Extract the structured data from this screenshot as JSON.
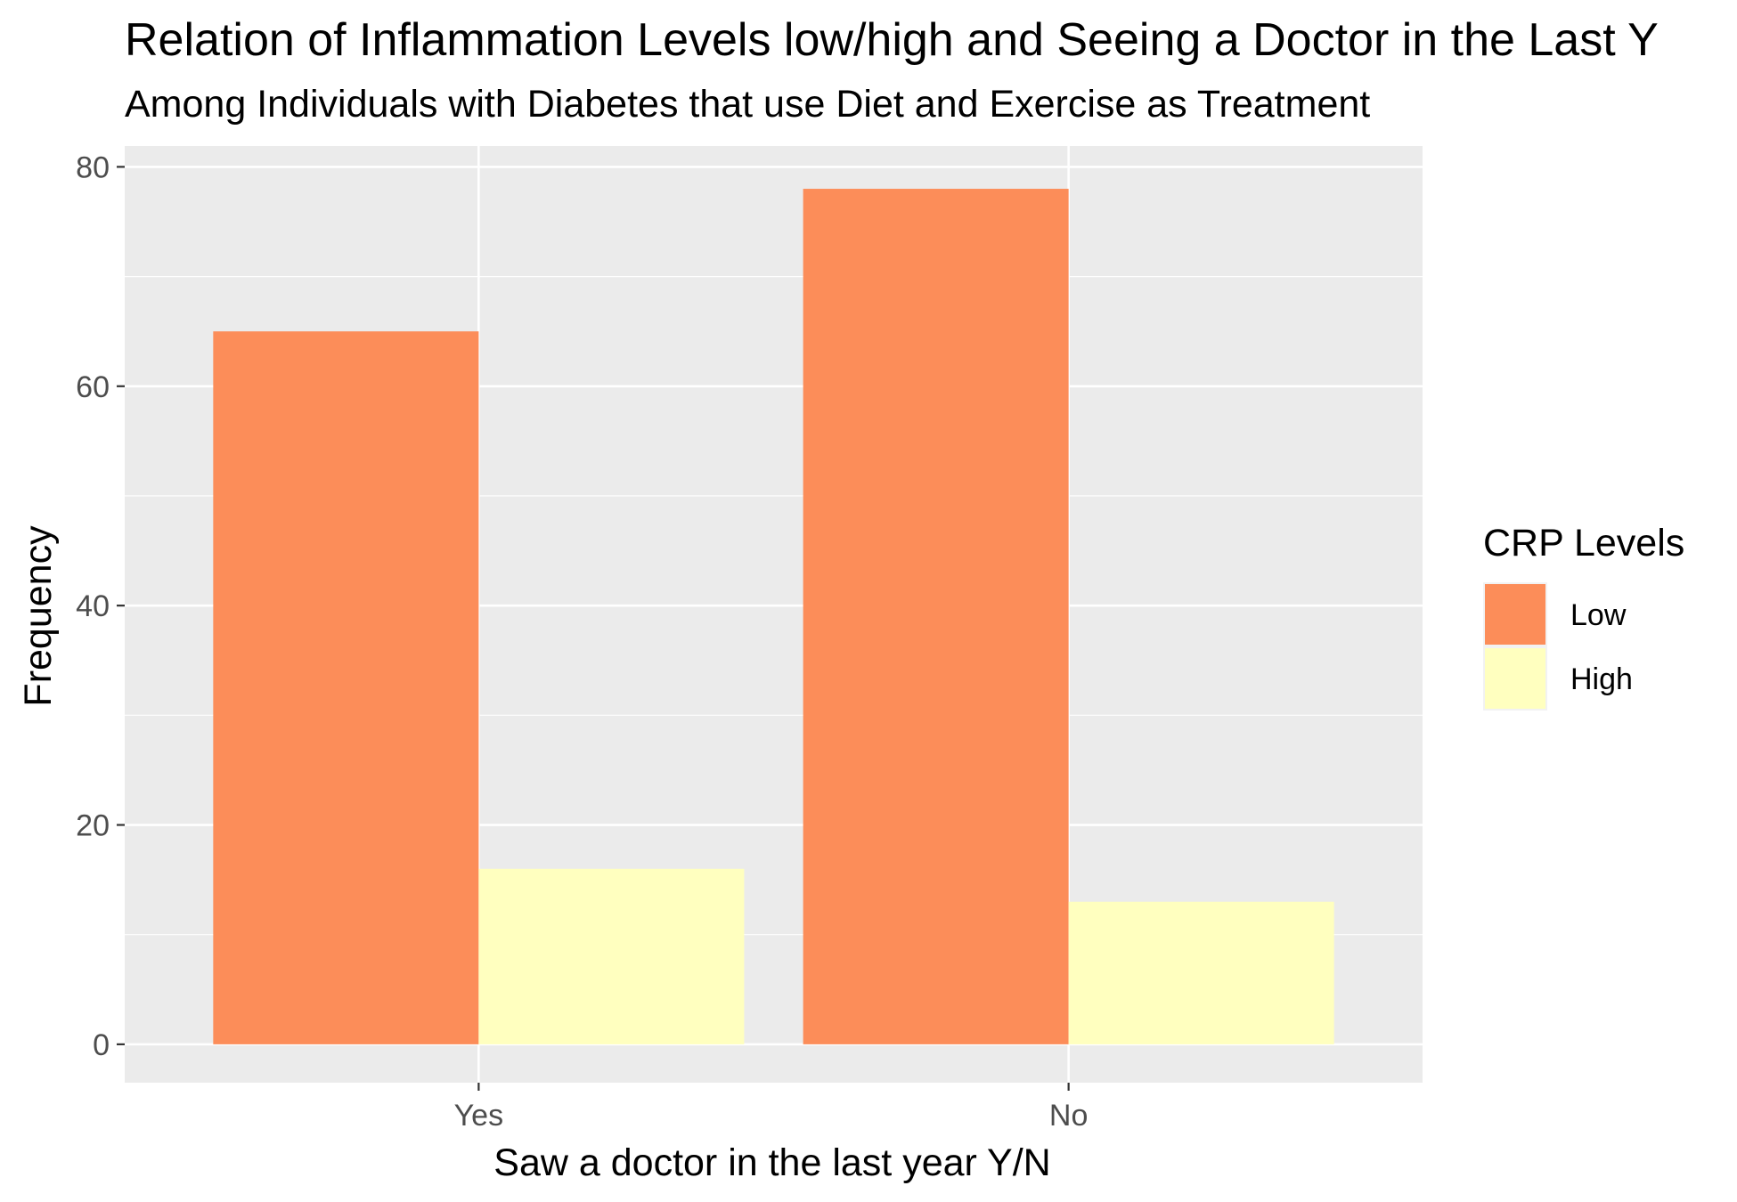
{
  "chart_data": {
    "type": "bar",
    "title": "Relation of Inflammation Levels low/high and Seeing a Doctor in the Last Y",
    "subtitle": "Among Individuals with Diabetes that use Diet and Exercise as Treatment",
    "xlabel": "Saw a doctor in the last year Y/N",
    "ylabel": "Frequency",
    "categories": [
      "Yes",
      "No"
    ],
    "series": [
      {
        "name": "Low",
        "values": [
          65,
          78
        ],
        "color": "#FC8D59"
      },
      {
        "name": "High",
        "values": [
          16,
          13
        ],
        "color": "#FFFFBF"
      }
    ],
    "ylim": [
      -3.5,
      81.9
    ],
    "yticks": [
      0,
      20,
      40,
      60,
      80
    ],
    "ytick_labels": [
      "0",
      "20",
      "40",
      "60",
      "80"
    ],
    "grid": true,
    "panel_background": "#EBEBEB",
    "grid_color": "#FFFFFF",
    "legend": {
      "title": "CRP Levels",
      "position": "right",
      "entries": [
        "Low",
        "High"
      ]
    }
  }
}
